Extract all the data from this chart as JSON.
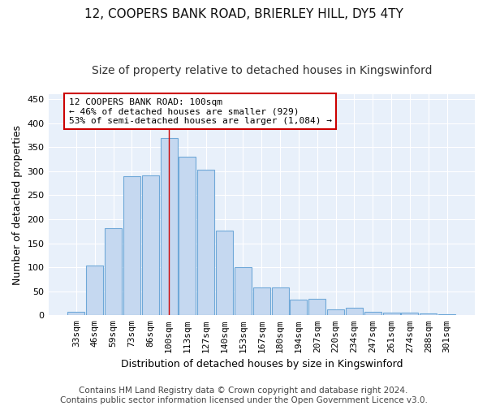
{
  "title": "12, COOPERS BANK ROAD, BRIERLEY HILL, DY5 4TY",
  "subtitle": "Size of property relative to detached houses in Kingswinford",
  "xlabel": "Distribution of detached houses by size in Kingswinford",
  "ylabel": "Number of detached properties",
  "categories": [
    "33sqm",
    "46sqm",
    "59sqm",
    "73sqm",
    "86sqm",
    "100sqm",
    "113sqm",
    "127sqm",
    "140sqm",
    "153sqm",
    "167sqm",
    "180sqm",
    "194sqm",
    "207sqm",
    "220sqm",
    "234sqm",
    "247sqm",
    "261sqm",
    "274sqm",
    "288sqm",
    "301sqm"
  ],
  "values": [
    8,
    103,
    181,
    289,
    291,
    368,
    330,
    303,
    177,
    100,
    58,
    58,
    32,
    35,
    12,
    15,
    8,
    5,
    5,
    4,
    3
  ],
  "bar_color": "#c5d8f0",
  "bar_edge_color": "#6fa8d8",
  "highlight_index": 5,
  "highlight_color": "#cc0000",
  "annotation_line1": "12 COOPERS BANK ROAD: 100sqm",
  "annotation_line2": "← 46% of detached houses are smaller (929)",
  "annotation_line3": "53% of semi-detached houses are larger (1,084) →",
  "annotation_box_color": "#ffffff",
  "annotation_box_edge": "#cc0000",
  "ylim": [
    0,
    460
  ],
  "yticks": [
    0,
    50,
    100,
    150,
    200,
    250,
    300,
    350,
    400,
    450
  ],
  "footer": "Contains HM Land Registry data © Crown copyright and database right 2024.\nContains public sector information licensed under the Open Government Licence v3.0.",
  "background_color": "#e8f0fa",
  "grid_color": "#ffffff",
  "fig_bg_color": "#ffffff",
  "title_fontsize": 11,
  "subtitle_fontsize": 10,
  "xlabel_fontsize": 9,
  "ylabel_fontsize": 9,
  "tick_fontsize": 8,
  "annot_fontsize": 8,
  "footer_fontsize": 7.5
}
